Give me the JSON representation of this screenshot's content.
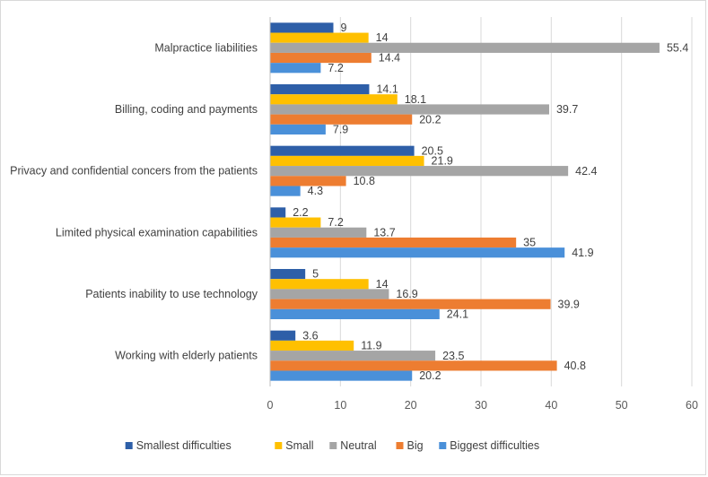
{
  "chart_data": {
    "type": "bar",
    "orientation": "horizontal",
    "title": "",
    "xlabel": "",
    "ylabel": "",
    "xlim": [
      0,
      60
    ],
    "xticks": [
      0,
      10,
      20,
      30,
      40,
      50,
      60
    ],
    "grid": true,
    "legend_position": "bottom",
    "categories": [
      "Malpractice liabilities",
      "Billing, coding and payments",
      "Privacy and confidential concers from the patients",
      "Limited physical examination capabilities",
      "Patients inability to use technology",
      "Working with elderly patients"
    ],
    "series": [
      {
        "name": "Smallest difficulties",
        "color": "#2e5fa8",
        "values": [
          9,
          14.1,
          20.5,
          2.2,
          5,
          3.6
        ]
      },
      {
        "name": "Small",
        "color": "#ffc000",
        "values": [
          14,
          18.1,
          21.9,
          7.2,
          14,
          11.9
        ]
      },
      {
        "name": "Neutral",
        "color": "#a5a5a5",
        "values": [
          55.4,
          39.7,
          42.4,
          13.7,
          16.9,
          23.5
        ]
      },
      {
        "name": "Big",
        "color": "#ed7d31",
        "values": [
          14.4,
          20.2,
          10.8,
          35,
          39.9,
          40.8
        ]
      },
      {
        "name": "Biggest difficulties",
        "color": "#4a90d9",
        "values": [
          7.2,
          7.9,
          4.3,
          41.9,
          24.1,
          20.2
        ]
      }
    ]
  }
}
